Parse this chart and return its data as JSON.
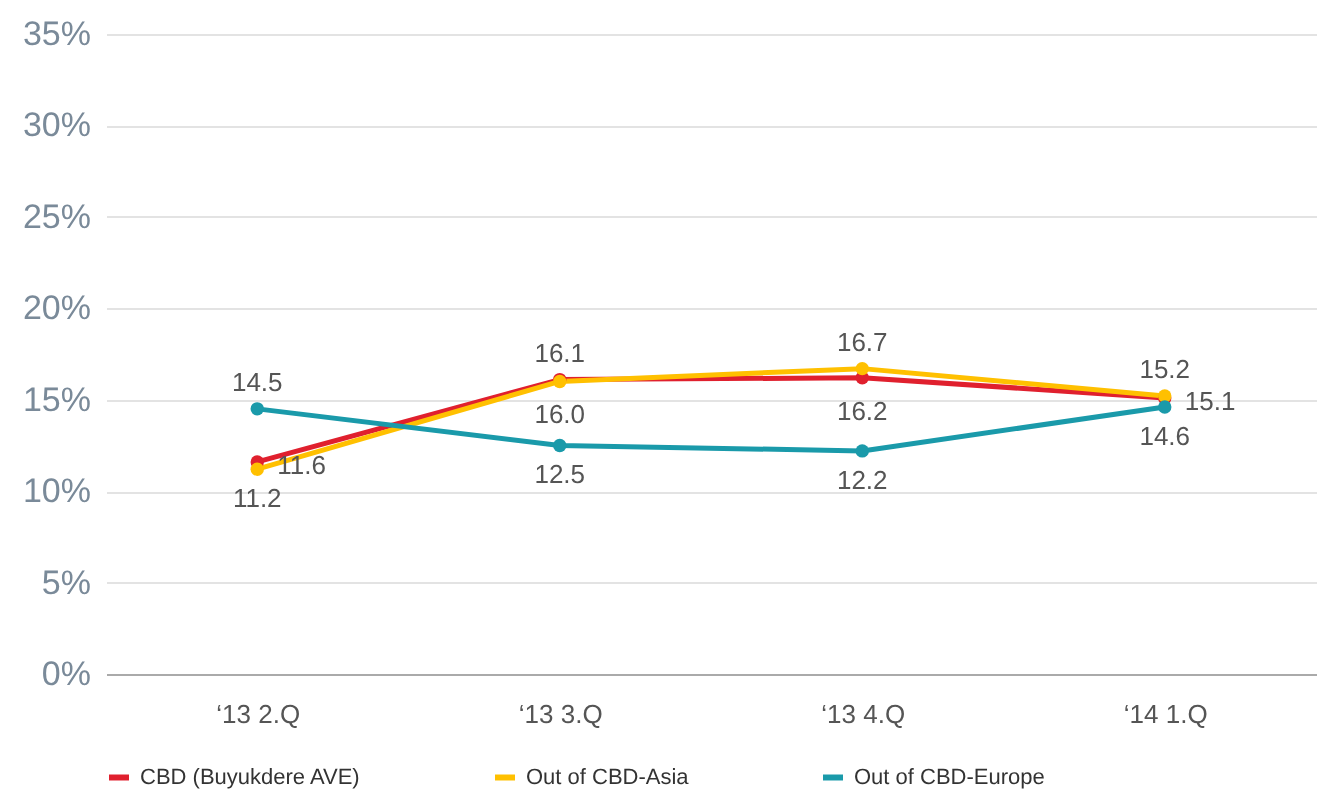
{
  "chart_data": {
    "type": "line",
    "categories": [
      "‘13 2.Q",
      "‘13 3.Q",
      "‘13 4.Q",
      "‘14 1.Q"
    ],
    "series": [
      {
        "name": "CBD (Buyukdere AVE)",
        "color": "#e0202e",
        "values": [
          11.6,
          16.1,
          16.2,
          15.1
        ],
        "value_labels": [
          "11.6",
          "16.1",
          "16.2",
          "15.1"
        ]
      },
      {
        "name": "Out of CBD-Asia",
        "color": "#ffc000",
        "values": [
          11.2,
          16.0,
          16.7,
          15.2
        ],
        "value_labels": [
          "11.2",
          "16.0",
          "16.7",
          "15.2"
        ]
      },
      {
        "name": "Out of CBD-Europe",
        "color": "#1a9aaa",
        "values": [
          14.5,
          12.5,
          12.2,
          14.6
        ],
        "value_labels": [
          "14.5",
          "12.5",
          "12.2",
          "14.6"
        ]
      }
    ],
    "ylim": [
      0,
      35
    ],
    "yticks": [
      {
        "value": 0,
        "label": "0%"
      },
      {
        "value": 5,
        "label": "5%"
      },
      {
        "value": 10,
        "label": "10%"
      },
      {
        "value": 15,
        "label": "15%"
      },
      {
        "value": 20,
        "label": "20%"
      },
      {
        "value": 25,
        "label": "25%"
      },
      {
        "value": 30,
        "label": "30%"
      },
      {
        "value": 35,
        "label": "35%"
      }
    ],
    "grid": "y",
    "legend": "bottom",
    "marker": "circle",
    "line_style": "solid"
  }
}
